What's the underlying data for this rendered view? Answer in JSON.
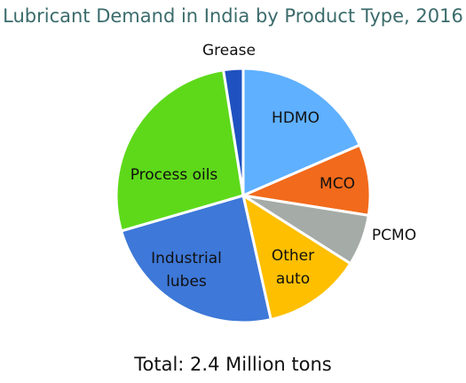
{
  "chart_data": {
    "type": "pie",
    "title": "Lubricant Demand in India by Product Type, 2016",
    "footer": "Total: 2.4 Million tons",
    "start_angle_deg": 0,
    "direction": "clockwise",
    "slices": [
      {
        "label": "HDMO",
        "value": 18.5,
        "color": "#5fb0ff"
      },
      {
        "label": "MCO",
        "value": 9.0,
        "color": "#f26a1b"
      },
      {
        "label": "PCMO",
        "value": 6.5,
        "color": "#a5aca8"
      },
      {
        "label": "Other auto",
        "value": 12.5,
        "color": "#fdbf00"
      },
      {
        "label": "Industrial lubes",
        "value": 24.0,
        "color": "#3e78d8"
      },
      {
        "label": "Process oils",
        "value": 27.0,
        "color": "#5ed91a"
      },
      {
        "label": "Grease",
        "value": 2.5,
        "color": "#1f52c0"
      }
    ]
  }
}
